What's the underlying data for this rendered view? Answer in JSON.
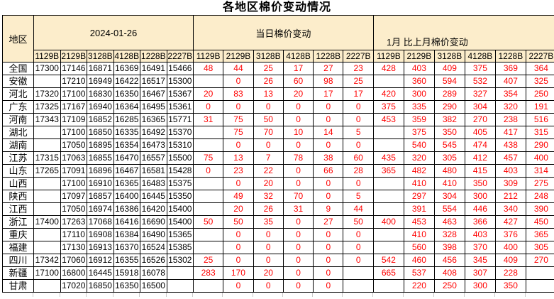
{
  "title": "各地区棉价变动情况",
  "colors": {
    "header_bg": "#FCEDCB",
    "border": "#000000",
    "change_text": "#FF0000",
    "normal_text": "#000000",
    "gridline_stub": "#C9C9C9"
  },
  "table": {
    "region_header": "地区",
    "groups": [
      {
        "label": "2024-01-26"
      },
      {
        "label": "当日棉价变动"
      },
      {
        "label": "1月 比上月棉价变动"
      }
    ],
    "grade_columns": [
      "1129B",
      "2129B",
      "3128B",
      "4128B",
      "1228B",
      "2227B"
    ],
    "rows": [
      {
        "region": "全国",
        "prices": [
          "17300",
          "17146",
          "16871",
          "16369",
          "16491",
          "15466"
        ],
        "daily_change": [
          "48",
          "44",
          "25",
          "17",
          "27",
          "23"
        ],
        "monthly_change": [
          "428",
          "403",
          "409",
          "375",
          "369",
          "364"
        ]
      },
      {
        "region": "安徽",
        "prices": [
          "",
          "17210",
          "16949",
          "16422",
          "16517",
          "15300"
        ],
        "daily_change": [
          "",
          "0",
          "26",
          "60",
          "98",
          "25"
        ],
        "monthly_change": [
          "",
          "360",
          "594",
          "532",
          "407",
          "325"
        ]
      },
      {
        "region": "河北",
        "prices": [
          "17320",
          "17100",
          "16830",
          "16350",
          "16467",
          "15367"
        ],
        "daily_change": [
          "20",
          "83",
          "13",
          "20",
          "17",
          "17"
        ],
        "monthly_change": [
          "420",
          "300",
          "289",
          "327",
          "354",
          "250"
        ]
      },
      {
        "region": "广东",
        "prices": [
          "17325",
          "17167",
          "16940",
          "16364",
          "16495",
          "15361"
        ],
        "daily_change": [
          "0",
          "0",
          "0",
          "0",
          "0",
          "0"
        ],
        "monthly_change": [
          "375",
          "335",
          "290",
          "304",
          "320",
          "191"
        ]
      },
      {
        "region": "河南",
        "prices": [
          "17343",
          "17109",
          "16852",
          "16285",
          "16365",
          "15771"
        ],
        "daily_change": [
          "31",
          "75",
          "50",
          "0",
          "0",
          "0"
        ],
        "monthly_change": [
          "453",
          "359",
          "382",
          "270",
          "238",
          "516"
        ]
      },
      {
        "region": "湖北",
        "prices": [
          "",
          "17100",
          "16850",
          "16335",
          "16492",
          "15370"
        ],
        "daily_change": [
          "",
          "75",
          "70",
          "10",
          "14",
          "5"
        ],
        "monthly_change": [
          "",
          "375",
          "350",
          "405",
          "417",
          "315"
        ]
      },
      {
        "region": "湖南",
        "prices": [
          "",
          "17050",
          "16895",
          "16354",
          "16473",
          "15310"
        ],
        "daily_change": [
          "",
          "0",
          "0",
          "0",
          "0",
          "0"
        ],
        "monthly_change": [
          "",
          "540",
          "545",
          "474",
          "438",
          "290"
        ]
      },
      {
        "region": "江苏",
        "prices": [
          "17315",
          "17063",
          "16855",
          "16470",
          "16557",
          "15500"
        ],
        "daily_change": [
          "75",
          "13",
          "7",
          "78",
          "38",
          "60"
        ],
        "monthly_change": [
          "435",
          "320",
          "305",
          "412",
          "457",
          "400"
        ]
      },
      {
        "region": "山东",
        "prices": [
          "17265",
          "17091",
          "16896",
          "16467",
          "16581",
          "15428"
        ],
        "daily_change": [
          "0",
          "23",
          "22",
          "0",
          "66",
          "28"
        ],
        "monthly_change": [
          "365",
          "482",
          "480",
          "415",
          "403",
          "314"
        ]
      },
      {
        "region": "山西",
        "prices": [
          "",
          "17100",
          "16910",
          "16365",
          "16483",
          "15375"
        ],
        "daily_change": [
          "",
          "0",
          "20",
          "0",
          "0",
          "0"
        ],
        "monthly_change": [
          "",
          "410",
          "410",
          "350",
          "309",
          "275"
        ]
      },
      {
        "region": "陕西",
        "prices": [
          "",
          "17097",
          "16857",
          "16400",
          "16445",
          "15350"
        ],
        "daily_change": [
          "",
          "49",
          "32",
          "70",
          "0",
          "5"
        ],
        "monthly_change": [
          "",
          "297",
          "304",
          "300",
          "212",
          "248"
        ]
      },
      {
        "region": "江西",
        "prices": [
          "",
          "17050",
          "16974",
          "16386",
          "16420",
          "15400"
        ],
        "daily_change": [
          "",
          "20",
          "26",
          "31",
          "9",
          "44"
        ],
        "monthly_change": [
          "",
          "391",
          "554",
          "446",
          "340",
          "390"
        ]
      },
      {
        "region": "浙江",
        "prices": [
          "17400",
          "17263",
          "17068",
          "16416",
          "16690",
          "15400"
        ],
        "daily_change": [
          "50",
          "50",
          "35",
          "0",
          "27",
          "50"
        ],
        "monthly_change": [
          "400",
          "453",
          "463",
          "366",
          "427",
          "450"
        ]
      },
      {
        "region": "重庆",
        "prices": [
          "",
          "17110",
          "16908",
          "16384",
          "16490",
          "15365"
        ],
        "daily_change": [
          "",
          "0",
          "0",
          "0",
          "0",
          "0"
        ],
        "monthly_change": [
          "",
          "410",
          "328",
          "403",
          "376",
          "365"
        ]
      },
      {
        "region": "福建",
        "prices": [
          "",
          "17130",
          "16913",
          "16370",
          "16524",
          "15385"
        ],
        "daily_change": [
          "",
          "0",
          "0",
          "0",
          "0",
          "0"
        ],
        "monthly_change": [
          "",
          "560",
          "398",
          "370",
          "400",
          "305"
        ]
      },
      {
        "region": "四川",
        "prices": [
          "17342",
          "17060",
          "16912",
          "16355",
          "16526",
          "15302"
        ],
        "daily_change": [
          "25",
          "0",
          "0",
          "0",
          "0",
          "0"
        ],
        "monthly_change": [
          "542",
          "460",
          "456",
          "345",
          "409",
          "270"
        ]
      },
      {
        "region": "新疆",
        "prices": [
          "17100",
          "16800",
          "16445",
          "15918",
          "16078",
          ""
        ],
        "daily_change": [
          "283",
          "170",
          "20",
          "0",
          "0",
          ""
        ],
        "monthly_change": [
          "665",
          "537",
          "408",
          "307",
          "228",
          ""
        ]
      },
      {
        "region": "甘肃",
        "prices": [
          "",
          "17020",
          "16850",
          "16350",
          "16500",
          ""
        ],
        "daily_change": [
          "",
          "0",
          "0",
          "0",
          "0",
          ""
        ],
        "monthly_change": [
          "",
          "220",
          "250",
          "300",
          "350",
          ""
        ]
      }
    ]
  }
}
